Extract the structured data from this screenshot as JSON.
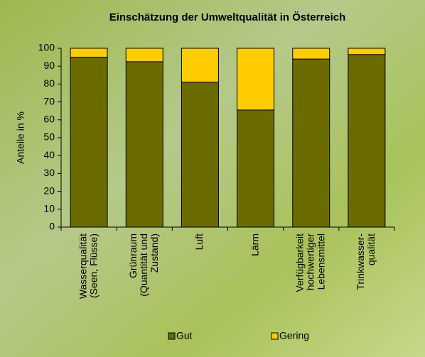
{
  "chart_data": {
    "type": "stacked_bar",
    "title": "Einschätzung der Umweltqualität in Österreich",
    "y_label": "Anteile in %",
    "categories": [
      [
        "Wasserqualität",
        "(Seen, Flüsse)"
      ],
      [
        "Grünraum",
        "(Quantität und",
        "Zustand)"
      ],
      [
        "Luft"
      ],
      [
        "Lärm"
      ],
      [
        "Verfügbarkeit",
        "hochwertiger",
        "Lebensmittel"
      ],
      [
        "Trinkwasser-",
        "qualität"
      ]
    ],
    "series": [
      {
        "name": "Gut",
        "color": "#6b6b00",
        "values": [
          95,
          92.5,
          81,
          65.5,
          94,
          96.5
        ]
      },
      {
        "name": "Gering",
        "color": "#ffcc00",
        "values": [
          5,
          7.5,
          19,
          34.5,
          6,
          3.5
        ]
      }
    ],
    "ylim": [
      0,
      100
    ],
    "yticks": [
      0,
      10,
      20,
      30,
      40,
      50,
      60,
      70,
      80,
      90,
      100
    ]
  }
}
